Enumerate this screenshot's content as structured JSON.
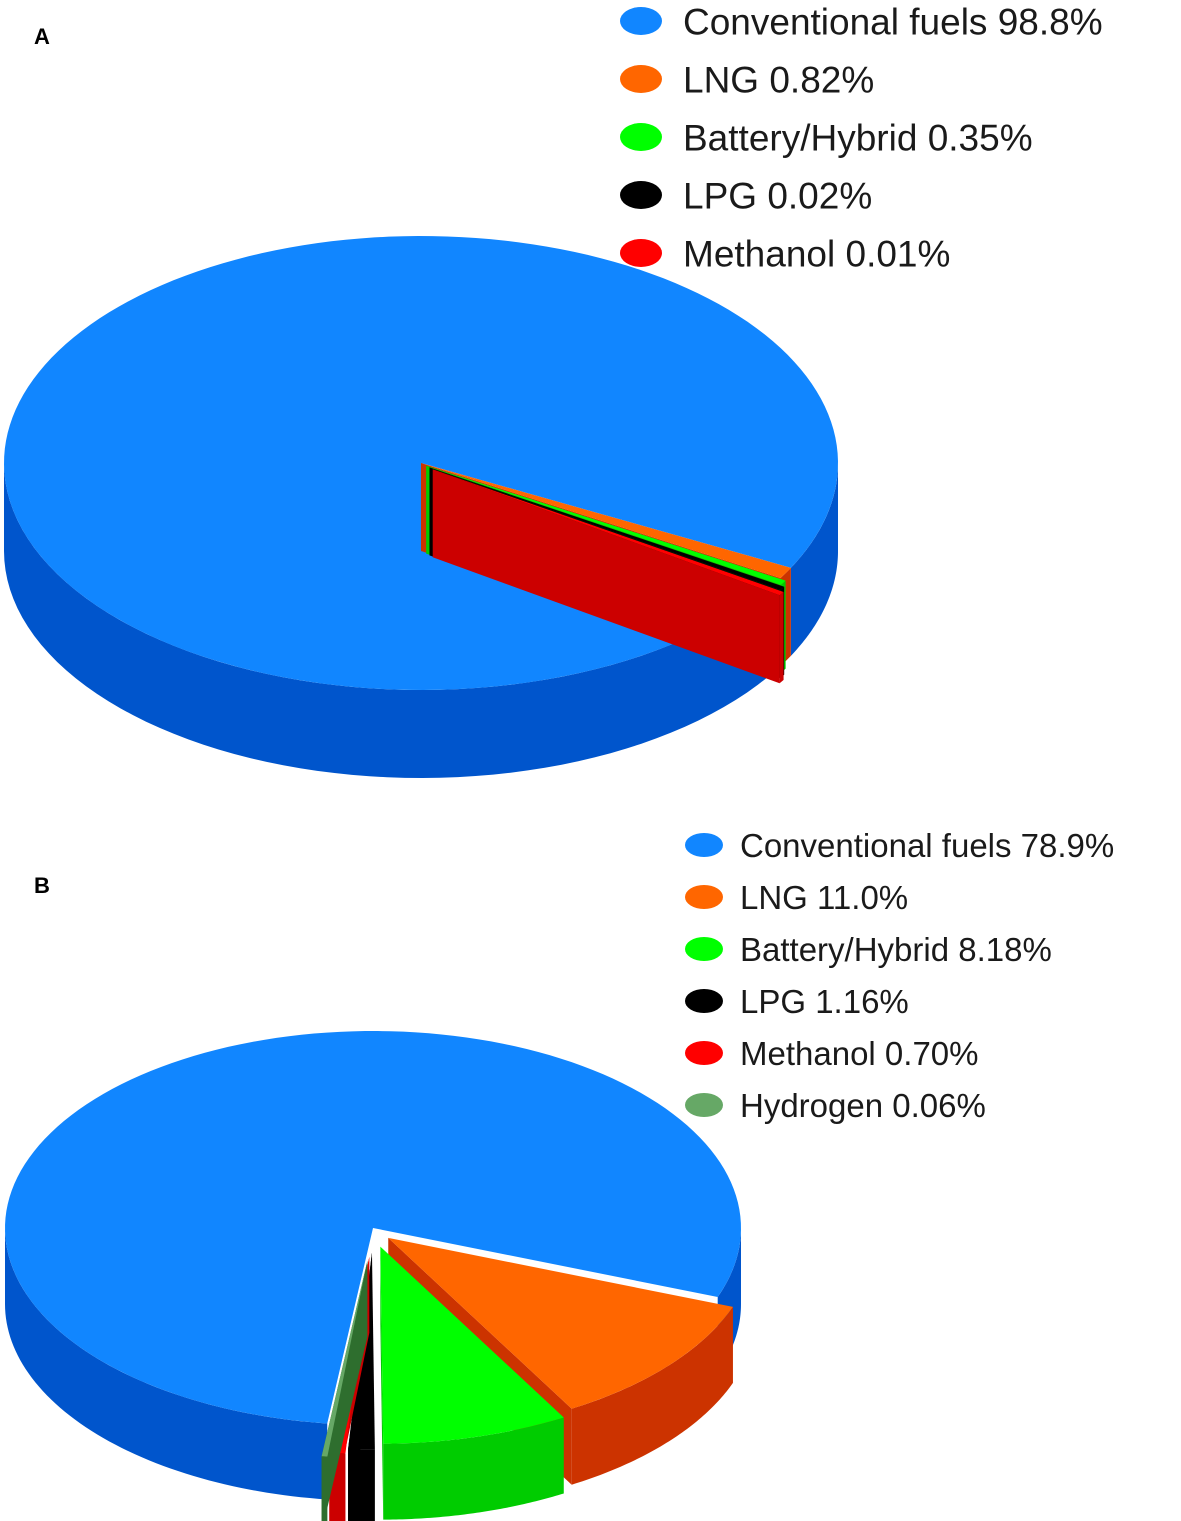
{
  "colors": {
    "Conventional fuels": {
      "top": "#1186FF",
      "side": "#0055CC"
    },
    "LNG": {
      "top": "#FF6600",
      "side": "#CC3300"
    },
    "Battery/Hybrid": {
      "top": "#00FF00",
      "side": "#00CC00"
    },
    "LPG": {
      "top": "#000000",
      "side": "#000000"
    },
    "Methanol": {
      "top": "#FF0000",
      "side": "#CC0000"
    },
    "Hydrogen": {
      "top": "#66A866",
      "side": "#2E6E2E"
    }
  },
  "chart_data": [
    {
      "panel_label": "A",
      "type": "pie",
      "style": "3d-exploded",
      "legend_position": "top-right",
      "slices": [
        {
          "name": "Conventional fuels",
          "value": 98.8,
          "label": "Conventional fuels 98.8%"
        },
        {
          "name": "LNG",
          "value": 0.82,
          "label": "LNG 0.82%"
        },
        {
          "name": "Battery/Hybrid",
          "value": 0.35,
          "label": "Battery/Hybrid 0.35%"
        },
        {
          "name": "LPG",
          "value": 0.02,
          "label": "LPG 0.02%"
        },
        {
          "name": "Methanol",
          "value": 0.01,
          "label": "Methanol 0.01%"
        }
      ]
    },
    {
      "panel_label": "B",
      "type": "pie",
      "style": "3d-exploded",
      "legend_position": "top-right",
      "slices": [
        {
          "name": "Conventional fuels",
          "value": 78.9,
          "label": "Conventional fuels 78.9%"
        },
        {
          "name": "LNG",
          "value": 11.0,
          "label": "LNG 11.0%"
        },
        {
          "name": "Battery/Hybrid",
          "value": 8.18,
          "label": "Battery/Hybrid 8.18%"
        },
        {
          "name": "LPG",
          "value": 1.16,
          "label": "LPG 1.16%"
        },
        {
          "name": "Methanol",
          "value": 0.7,
          "label": "Methanol 0.70%"
        },
        {
          "name": "Hydrogen",
          "value": 0.06,
          "label": "Hydrogen 0.06%"
        }
      ]
    }
  ]
}
